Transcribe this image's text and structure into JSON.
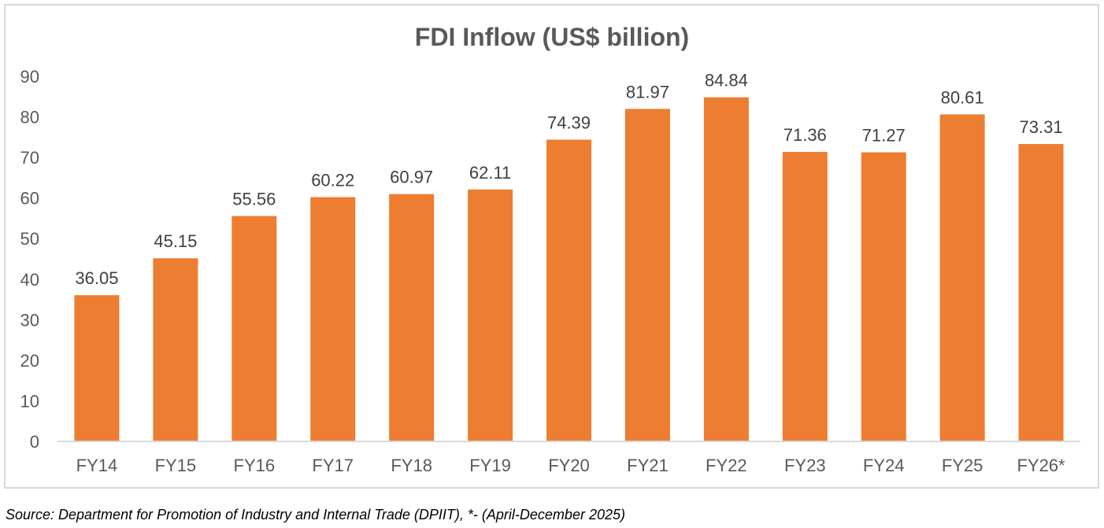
{
  "chart_data": {
    "type": "bar",
    "title": "FDI Inflow (US$ billion)",
    "categories": [
      "FY14",
      "FY15",
      "FY16",
      "FY17",
      "FY18",
      "FY19",
      "FY20",
      "FY21",
      "FY22",
      "FY23",
      "FY24",
      "FY25",
      "FY26*"
    ],
    "values": [
      36.05,
      45.15,
      55.56,
      60.22,
      60.97,
      62.11,
      74.39,
      81.97,
      84.84,
      71.36,
      71.27,
      80.61,
      73.31
    ],
    "data_labels": [
      "36.05",
      "45.15",
      "55.56",
      "60.22",
      "60.97",
      "62.11",
      "74.39",
      "81.97",
      "84.84",
      "71.36",
      "71.27",
      "80.61",
      "73.31"
    ],
    "xlabel": "",
    "ylabel": "",
    "ylim": [
      0,
      90
    ],
    "yticks": [
      0,
      10,
      20,
      30,
      40,
      50,
      60,
      70,
      80,
      90
    ],
    "grid": false,
    "legend": "none",
    "bar_color": "#ed7d31"
  },
  "source": "Source: Department for Promotion of Industry and Internal Trade (DPIIT), *- (April-December 2025)"
}
